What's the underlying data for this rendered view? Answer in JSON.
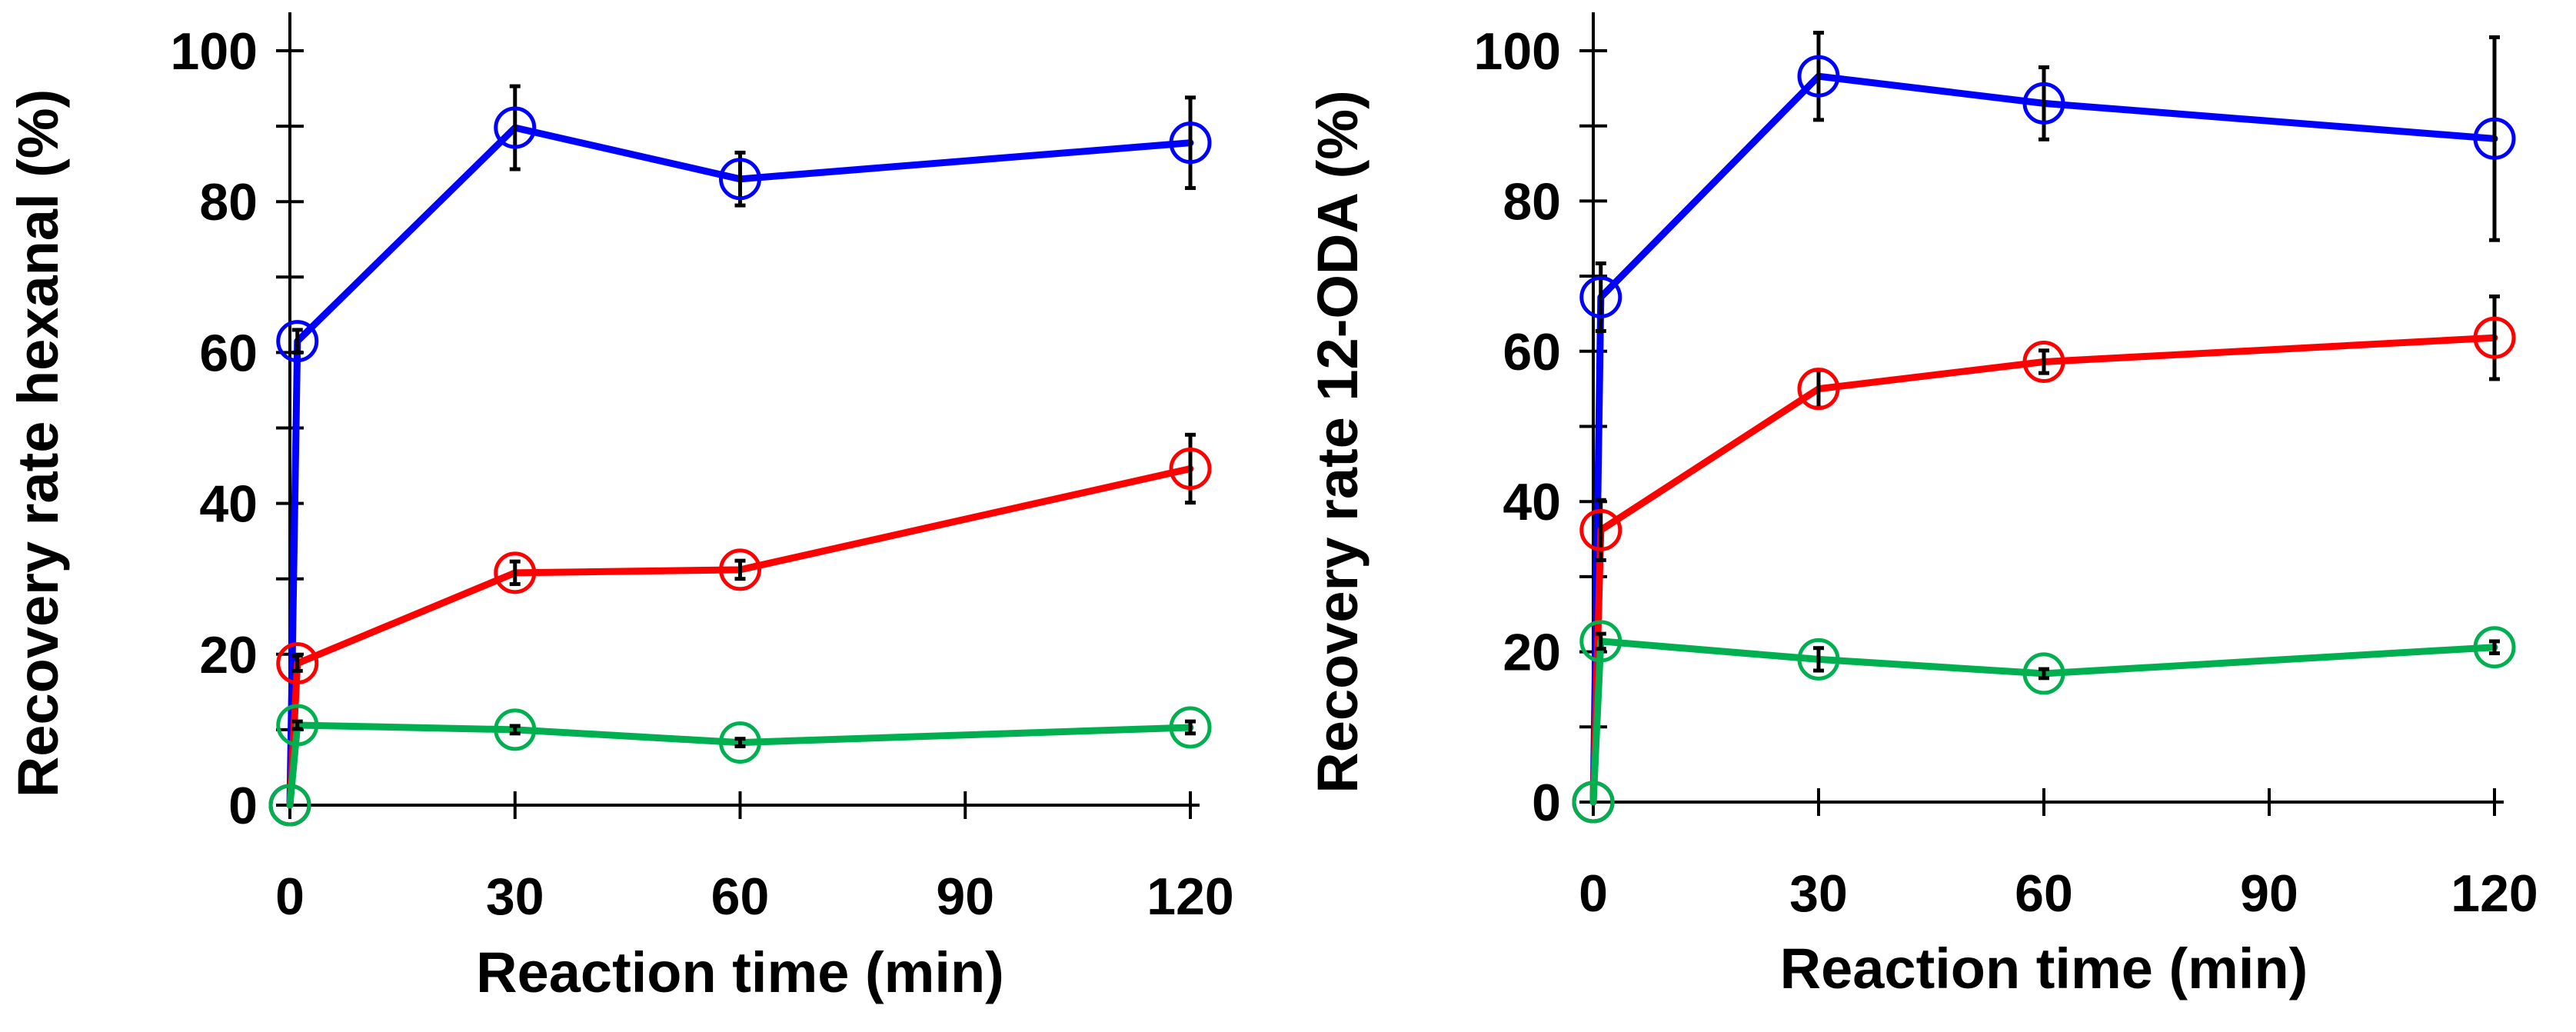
{
  "chart_data": [
    {
      "type": "line",
      "title": "",
      "xlabel": "Reaction time (min)",
      "ylabel": "Recovery rate hexanal (%)",
      "xlim": [
        0,
        120
      ],
      "ylim": [
        0,
        100
      ],
      "xticks": [
        0,
        30,
        60,
        90,
        120
      ],
      "yticks": [
        0,
        20,
        40,
        60,
        80,
        100
      ],
      "x": [
        0,
        1,
        30,
        60,
        120
      ],
      "grid": false,
      "series": [
        {
          "name": "blue",
          "color": "#0000ff",
          "values": [
            0,
            61.5,
            89.8,
            83.0,
            87.8
          ],
          "errors": [
            0,
            1.5,
            5.5,
            3.5,
            6.0
          ]
        },
        {
          "name": "red",
          "color": "#ff0000",
          "values": [
            0,
            18.8,
            30.8,
            31.2,
            44.6
          ],
          "errors": [
            0,
            1.0,
            1.5,
            1.2,
            4.5
          ]
        },
        {
          "name": "green",
          "color": "#00b050",
          "values": [
            0,
            10.6,
            10.0,
            8.3,
            10.3
          ],
          "errors": [
            0,
            0.5,
            0.5,
            0.5,
            0.8
          ]
        }
      ]
    },
    {
      "type": "line",
      "title": "",
      "xlabel": "Reaction time (min)",
      "ylabel": "Recovery rate 12-ODA (%)",
      "xlim": [
        0,
        120
      ],
      "ylim": [
        0,
        100
      ],
      "xticks": [
        0,
        30,
        60,
        90,
        120
      ],
      "yticks": [
        0,
        20,
        40,
        60,
        80,
        100
      ],
      "x": [
        0,
        1,
        30,
        60,
        120
      ],
      "grid": false,
      "series": [
        {
          "name": "blue",
          "color": "#0000ff",
          "values": [
            0,
            67.2,
            96.6,
            93.0,
            88.3
          ],
          "errors": [
            0,
            4.5,
            5.8,
            4.8,
            13.5
          ]
        },
        {
          "name": "red",
          "color": "#ff0000",
          "values": [
            0,
            36.2,
            55.0,
            58.6,
            61.8
          ],
          "errors": [
            0,
            4.0,
            2.5,
            1.5,
            5.5
          ]
        },
        {
          "name": "green",
          "color": "#00b050",
          "values": [
            0,
            21.4,
            19.0,
            17.1,
            20.6
          ],
          "errors": [
            0,
            1.0,
            1.5,
            0.6,
            0.8
          ]
        }
      ]
    }
  ]
}
